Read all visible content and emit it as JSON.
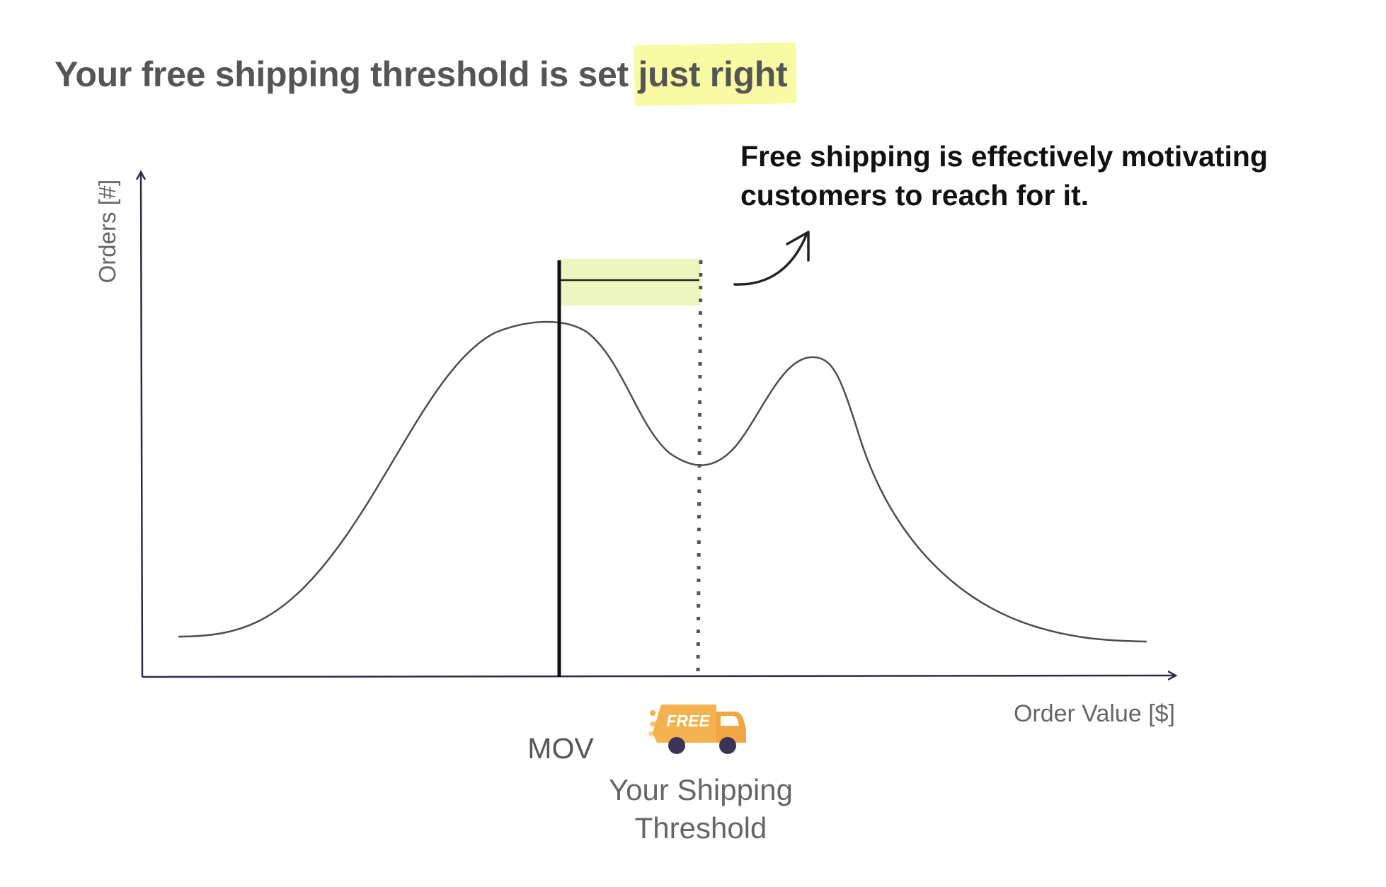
{
  "title": {
    "prefix": "Your free shipping threshold is set ",
    "highlight": "just right"
  },
  "callout": "Free shipping is effectively motivating customers to reach for it.",
  "axes": {
    "y_label": "Orders [#]",
    "x_label": "Order Value [$]"
  },
  "markers": {
    "mov_label": "MOV",
    "threshold_label_line1": "Your Shipping",
    "threshold_label_line2": "Threshold"
  },
  "badge": {
    "text": "FREE",
    "icon": "delivery-truck-icon"
  },
  "colors": {
    "highlight": "#f8f99a",
    "band": "#eef6bf",
    "truck": "#f3b24f",
    "axis": "#2e2b4a",
    "curve": "#4d4d4d"
  }
}
